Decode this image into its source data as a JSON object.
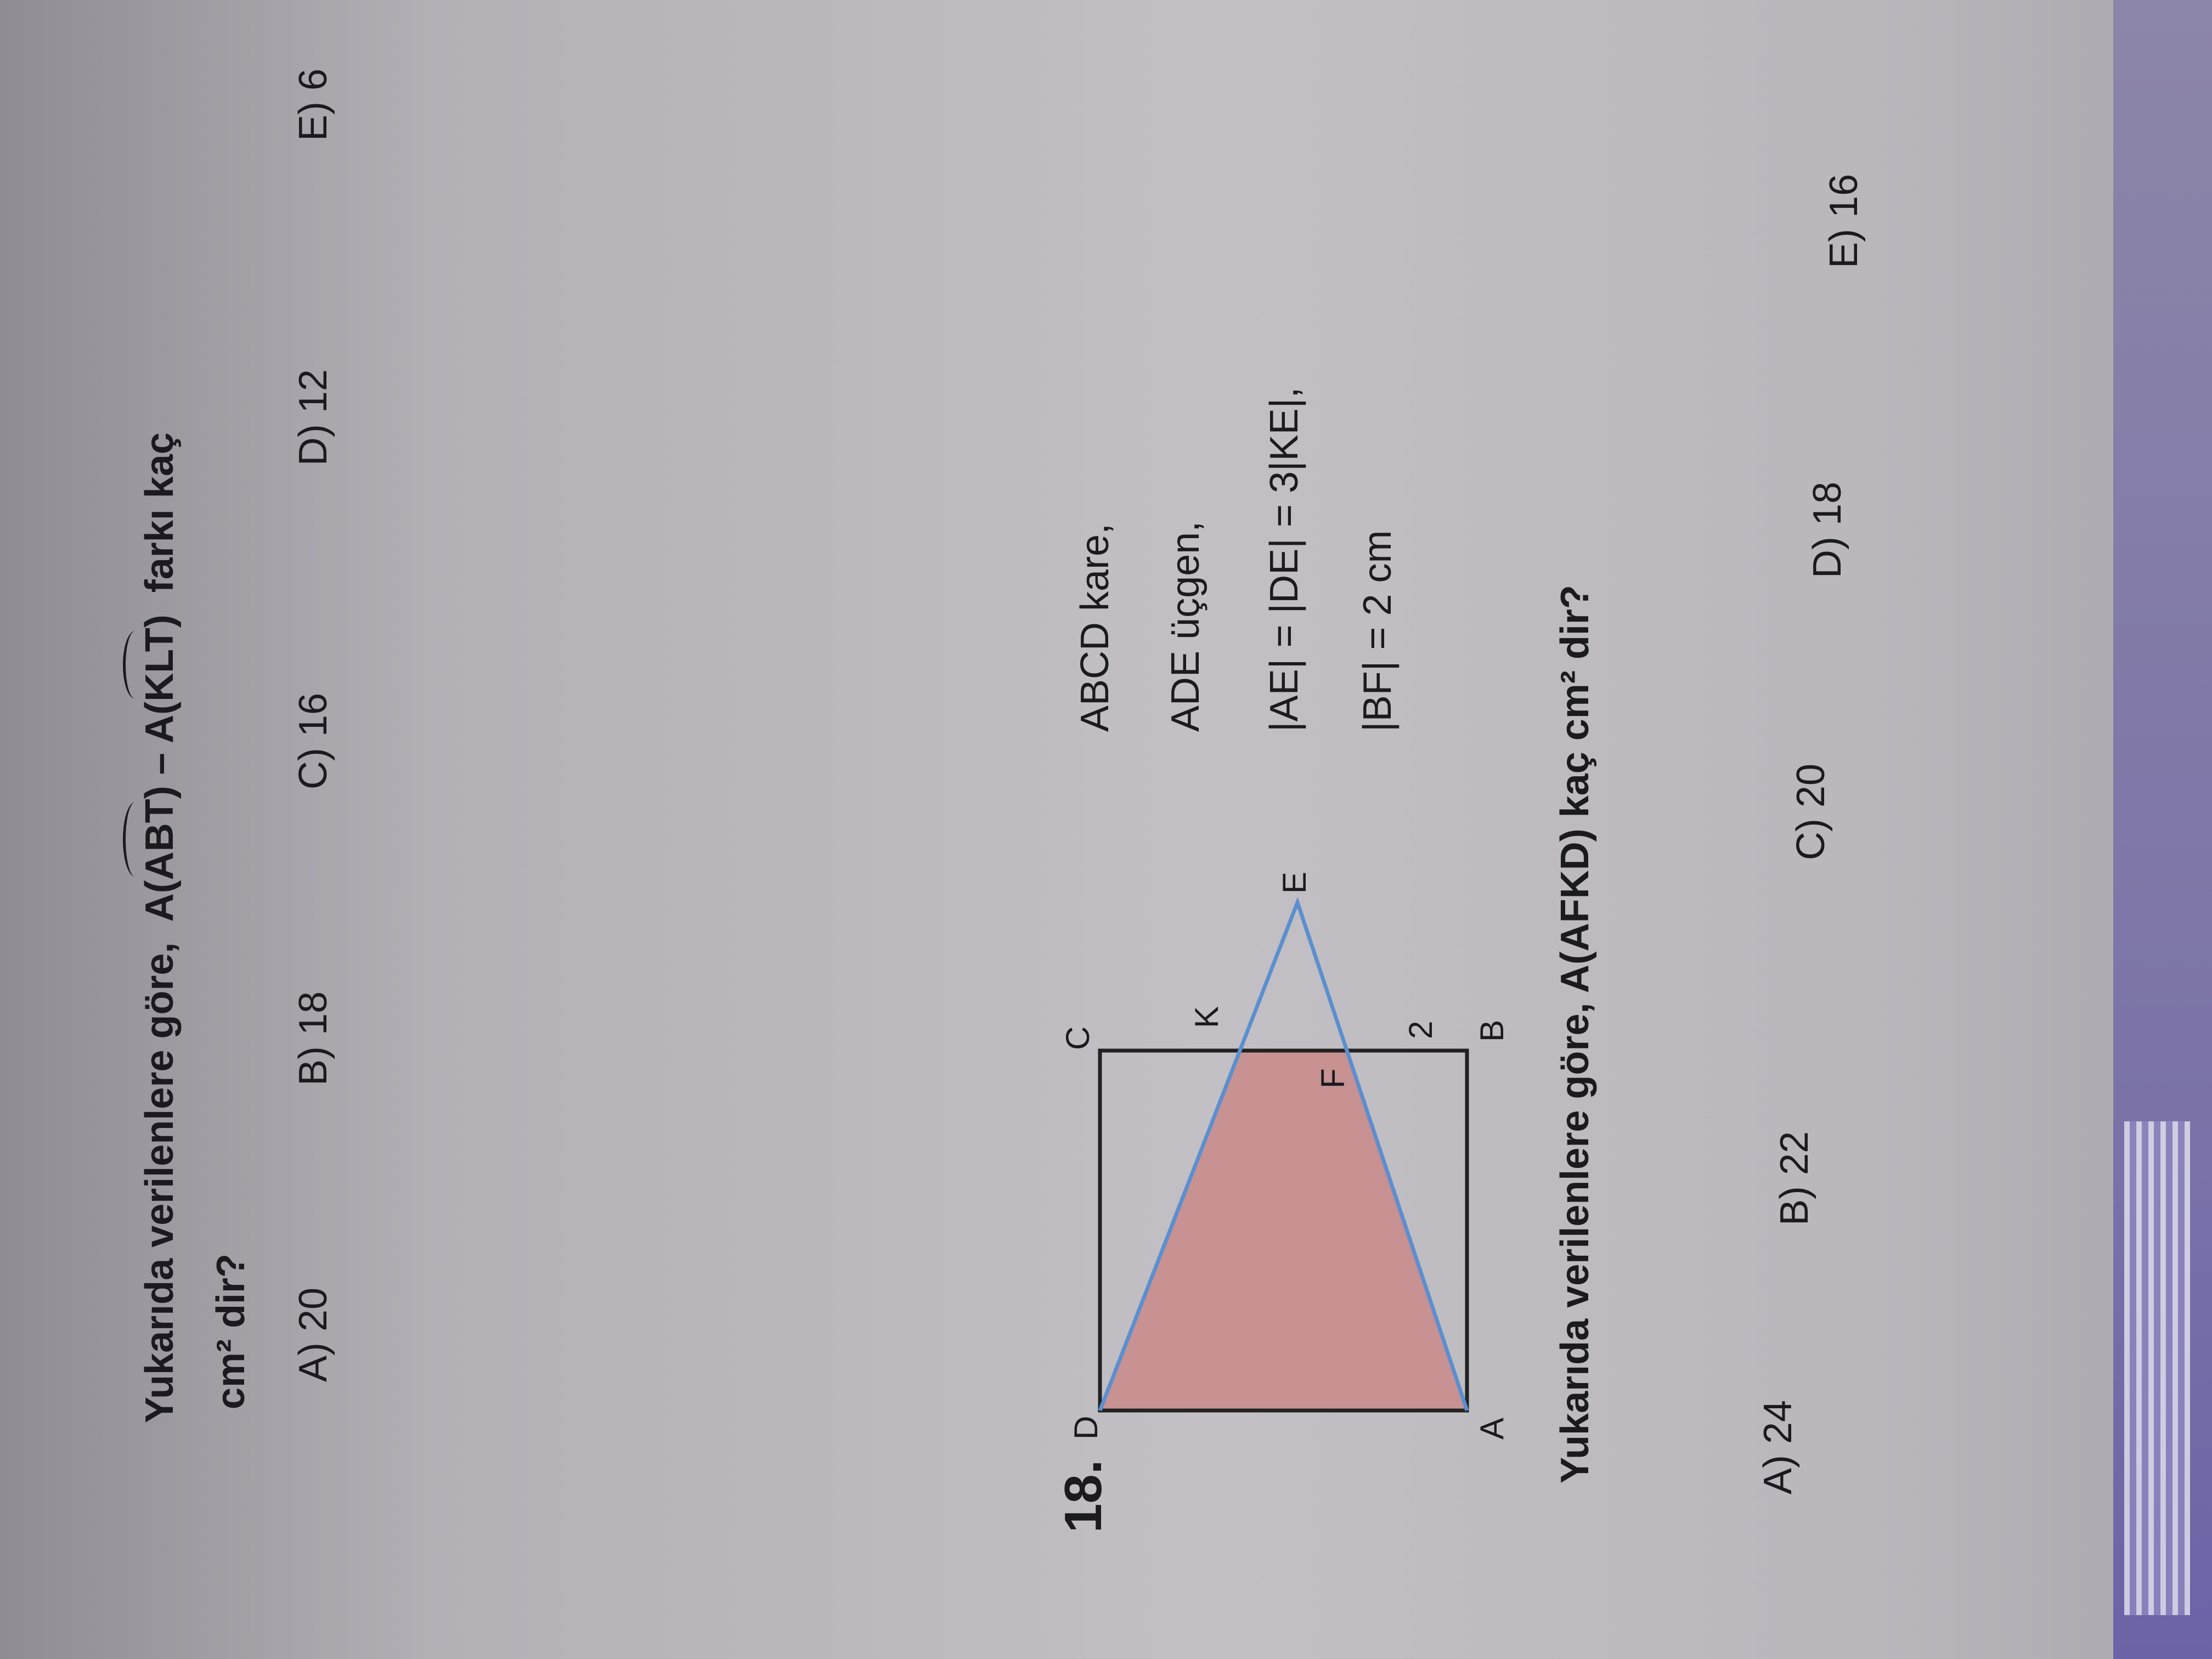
{
  "q17": {
    "line1_prefix": "Yukarıda verilenlere göre,",
    "expr_a": "A(",
    "expr_abt": "ABT",
    "expr_mid": ") – A(",
    "expr_klt": "KLT",
    "expr_end": ")",
    "line1_suffix": "farkı kaç",
    "line2": "cm² dir?",
    "options": [
      "A) 20",
      "B) 18",
      "C) 16",
      "D) 12",
      "E) 6"
    ]
  },
  "q18": {
    "number": "18.",
    "givens": [
      "ABCD kare,",
      "ADE üçgen,",
      "|AE| = |DE| = 3|KE|,",
      "|BF| = 2 cm"
    ],
    "figure": {
      "labels": {
        "A": "A",
        "B": "B",
        "C": "C",
        "D": "D",
        "E": "E",
        "K": "K",
        "F": "F",
        "BF": "2"
      },
      "shaded_region": "AFKD",
      "colors": {
        "shade": "#c98a8a",
        "triangle": "#5b8fd0",
        "square": "#222222"
      }
    },
    "question": "Yukarıda verilenlere göre, A(AFKD) kaç cm² dir?",
    "options": [
      "A) 24",
      "B) 22",
      "C) 20",
      "D) 18",
      "E) 16"
    ]
  }
}
